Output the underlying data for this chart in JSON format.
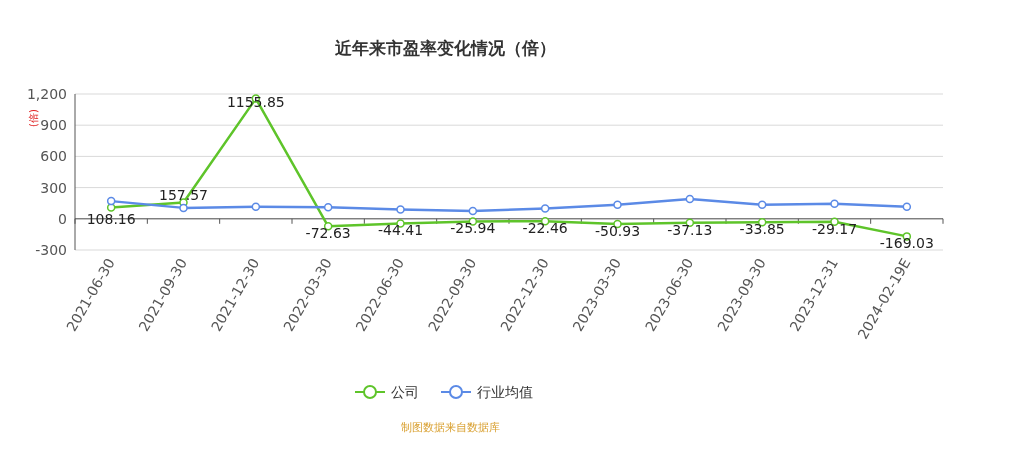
{
  "chart_data": {
    "type": "line",
    "title": "近年来市盈率变化情况（倍）",
    "ylabel": "(倍)",
    "categories": [
      "2021-06-30",
      "2021-09-30",
      "2021-12-30",
      "2022-03-30",
      "2022-06-30",
      "2022-09-30",
      "2022-12-30",
      "2023-03-30",
      "2023-06-30",
      "2023-09-30",
      "2023-12-31",
      "2024-02-19E"
    ],
    "series": [
      {
        "name": "公司",
        "color": "#5ec42a",
        "values": [
          108.16,
          157.57,
          1155.85,
          -72.63,
          -44.41,
          -25.94,
          -22.46,
          -50.93,
          -37.13,
          -33.85,
          -29.17,
          -169.03
        ],
        "data_labels": true
      },
      {
        "name": "行业均值",
        "color": "#5b8ae6",
        "values": [
          170,
          105,
          115,
          110,
          90,
          75,
          100,
          135,
          190,
          135,
          145,
          115
        ]
      }
    ],
    "ylim": [
      -300,
      1200
    ],
    "yticks": [
      -300,
      0,
      300,
      600,
      900,
      {
        "value": 1200,
        "label": "1,200"
      }
    ],
    "grid": "y",
    "legend": "bottom",
    "marker": "circle",
    "line_style": "solid",
    "annotations": [
      "制图数据来自数据库"
    ]
  }
}
